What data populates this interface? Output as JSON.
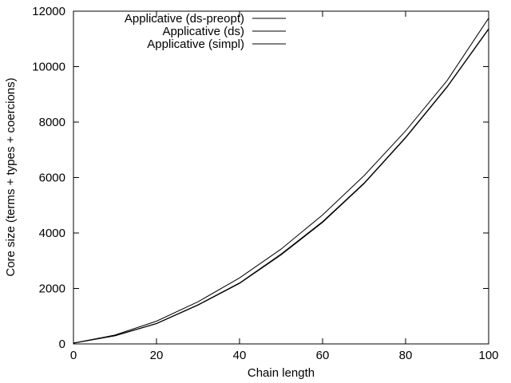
{
  "chart_data": {
    "type": "line",
    "xlabel": "Chain length",
    "ylabel": "Core size (terms + types + coercions)",
    "xlim": [
      0,
      100
    ],
    "ylim": [
      0,
      12000
    ],
    "xticks": [
      0,
      20,
      40,
      60,
      80,
      100
    ],
    "yticks": [
      0,
      2000,
      4000,
      6000,
      8000,
      10000,
      12000
    ],
    "grid": false,
    "legend_position": "top-left",
    "line_color": "#000000",
    "x": [
      0,
      10,
      20,
      30,
      40,
      50,
      60,
      70,
      80,
      90,
      100
    ],
    "series": [
      {
        "name": "Applicative (ds-preopt)",
        "values": [
          30,
          320,
          820,
          1520,
          2380,
          3420,
          4650,
          6070,
          7680,
          9500,
          11750
        ]
      },
      {
        "name": "Applicative (ds)",
        "values": [
          28,
          300,
          740,
          1410,
          2200,
          3240,
          4410,
          5800,
          7450,
          9280,
          11370
        ]
      },
      {
        "name": "Applicative (simpl)",
        "values": [
          28,
          290,
          730,
          1400,
          2180,
          3210,
          4380,
          5780,
          7430,
          9260,
          11350
        ]
      }
    ]
  }
}
